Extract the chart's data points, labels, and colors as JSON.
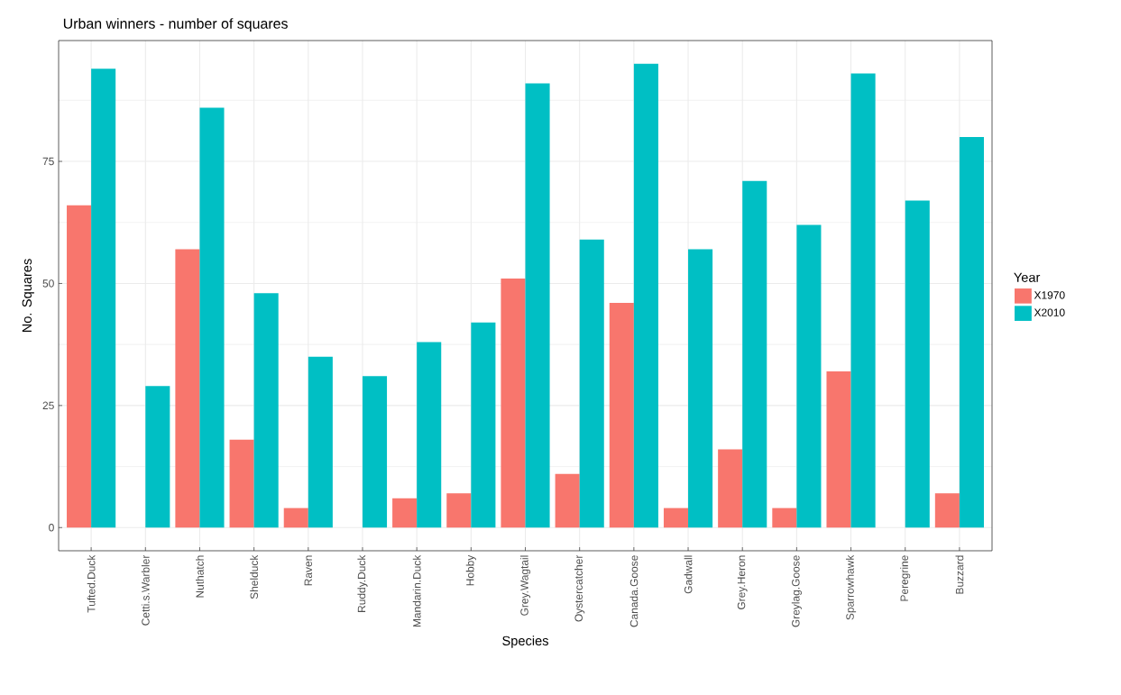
{
  "chart_data": {
    "type": "bar",
    "title": "Urban winners - number of squares",
    "xlabel": "Species",
    "ylabel": "No. Squares",
    "legend_title": "Year",
    "categories": [
      "Tufted.Duck",
      "Cetti.s.Warbler",
      "Nuthatch",
      "Shelduck",
      "Raven",
      "Ruddy.Duck",
      "Mandarin.Duck",
      "Hobby",
      "Grey.Wagtail",
      "Oystercatcher",
      "Canada.Goose",
      "Gadwall",
      "Grey.Heron",
      "Greylag.Goose",
      "Sparrowhawk",
      "Peregrine",
      "Buzzard"
    ],
    "series": [
      {
        "name": "X1970",
        "color": "#f8766d",
        "values": [
          66,
          0,
          57,
          18,
          4,
          0,
          6,
          7,
          51,
          11,
          46,
          4,
          16,
          4,
          32,
          0,
          7
        ]
      },
      {
        "name": "X2010",
        "color": "#00bfc4",
        "values": [
          94,
          29,
          86,
          48,
          35,
          31,
          38,
          42,
          91,
          59,
          95,
          57,
          71,
          62,
          93,
          67,
          80
        ]
      }
    ],
    "ylim": [
      -4.75,
      99.75
    ],
    "yticks": [
      0,
      25,
      50,
      75
    ],
    "grid": true,
    "legend": "right"
  }
}
